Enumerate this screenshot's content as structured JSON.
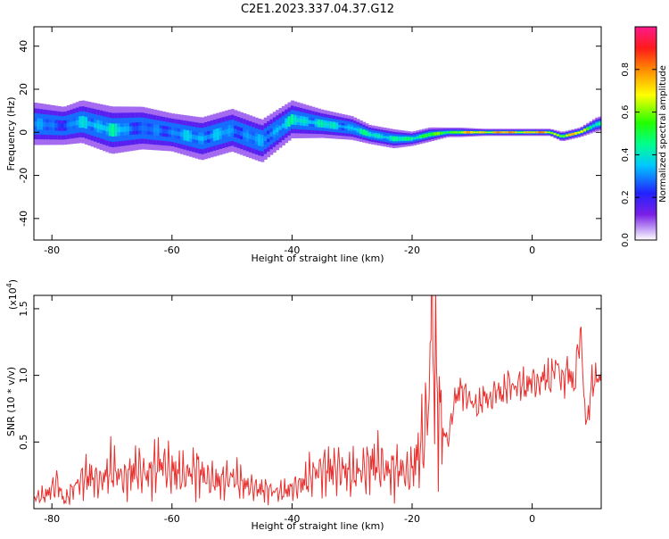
{
  "title": "C2E1.2023.337.04.37.G12",
  "chart_data": [
    {
      "type": "heatmap",
      "xlabel": "Height of straight line (km)",
      "ylabel": "Frequency (Hz)",
      "xlim": [
        -83,
        11.5
      ],
      "ylim": [
        -50,
        49
      ],
      "xticks": [
        -80,
        -60,
        -40,
        -20,
        0
      ],
      "yticks": [
        -40,
        -20,
        0,
        20,
        40
      ],
      "colorbar": {
        "label": "Normalized spectral amplitude",
        "range": [
          0,
          1
        ],
        "ticks": [
          0.0,
          0.2,
          0.4,
          0.6,
          0.8
        ]
      },
      "ridge": {
        "x": [
          -83,
          -78,
          -75,
          -70,
          -65,
          -60,
          -55,
          -50,
          -45,
          -40,
          -35,
          -30,
          -27,
          -23,
          -20,
          -17,
          -14,
          -12,
          -8,
          -4,
          0,
          3,
          5,
          8,
          11
        ],
        "freq": [
          4,
          3,
          5,
          1,
          2,
          0,
          -3,
          1,
          -4,
          6,
          4,
          2,
          -1,
          -3,
          -3,
          -1,
          0,
          0,
          0,
          0,
          0,
          0,
          -2,
          0,
          4
        ],
        "width": [
          9,
          8,
          9,
          10,
          9,
          8,
          9,
          9,
          9,
          8,
          6,
          5,
          4,
          4,
          3,
          3,
          2,
          2,
          1.5,
          1.5,
          1.5,
          1.5,
          2,
          2,
          3
        ],
        "amp": [
          0.35,
          0.3,
          0.4,
          0.45,
          0.3,
          0.35,
          0.4,
          0.35,
          0.35,
          0.45,
          0.45,
          0.4,
          0.5,
          0.45,
          0.55,
          0.6,
          0.65,
          0.75,
          0.85,
          0.85,
          0.85,
          0.8,
          0.75,
          0.8,
          0.5
        ]
      }
    },
    {
      "type": "line",
      "xlabel": "Height of straight line (km)",
      "ylabel": "SNR (10 * v/v)",
      "multiplier": "(x10",
      "multiplier_exp": "4",
      "multiplier_close": ")",
      "xlim": [
        -83,
        11.5
      ],
      "ylim": [
        0,
        1.6
      ],
      "xticks": [
        -80,
        -60,
        -40,
        -20,
        0
      ],
      "yticks": [
        0.5,
        1.0,
        1.5
      ],
      "color": "#e8312f",
      "series": [
        {
          "x": [
            -83,
            -81,
            -79,
            -78,
            -76,
            -74,
            -72,
            -70,
            -68,
            -66,
            -64,
            -62,
            -60,
            -58,
            -56,
            -54,
            -52,
            -50,
            -48,
            -46,
            -44,
            -42,
            -40,
            -38,
            -36,
            -34,
            -32,
            -30,
            -28,
            -26,
            -24,
            -22,
            -20.5,
            -19,
            -18,
            -17.2,
            -16.8,
            -16,
            -15,
            -14,
            -13,
            -12,
            -11,
            -10,
            -9,
            -8,
            -7,
            -6,
            -5,
            -4,
            -3,
            -2,
            -1,
            0,
            1,
            2,
            3,
            4,
            5,
            6,
            7,
            8,
            9,
            10,
            11.5
          ],
          "y": [
            0.08,
            0.1,
            0.2,
            0.05,
            0.18,
            0.25,
            0.2,
            0.3,
            0.22,
            0.3,
            0.25,
            0.35,
            0.28,
            0.25,
            0.3,
            0.22,
            0.2,
            0.24,
            0.18,
            0.15,
            0.14,
            0.12,
            0.15,
            0.2,
            0.28,
            0.3,
            0.3,
            0.25,
            0.3,
            0.35,
            0.28,
            0.3,
            0.25,
            0.4,
            0.55,
            0.8,
            1.55,
            0.9,
            0.6,
            0.5,
            0.8,
            0.9,
            0.85,
            0.8,
            0.75,
            0.85,
            0.8,
            0.9,
            0.85,
            0.95,
            0.9,
            0.95,
            0.9,
            0.98,
            0.92,
            1.0,
            0.95,
            1.1,
            0.95,
            1.05,
            0.9,
            1.35,
            0.6,
            0.95,
            1.0
          ]
        }
      ]
    }
  ]
}
